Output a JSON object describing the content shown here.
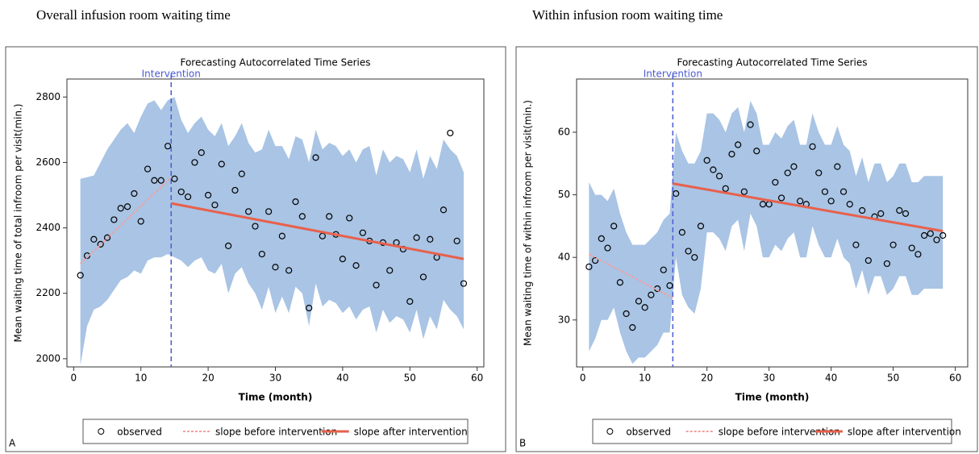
{
  "chart_data": [
    {
      "type": "scatter",
      "panel_title": "Overall infusion room waiting time",
      "title": "Forecasting Autocorrelated Time Series",
      "panel_label": "A",
      "annotation": "Intervention",
      "intervention_x": 14.5,
      "x_label": "Time (month)",
      "y_label": "Mean waiting time of total infroom per visit(min.)",
      "xlim": [
        -1,
        61
      ],
      "xticks": [
        0,
        10,
        20,
        30,
        40,
        50,
        60
      ],
      "ylim": [
        1975,
        2855
      ],
      "yticks": [
        2000,
        2200,
        2400,
        2600,
        2800
      ],
      "x": [
        1,
        2,
        3,
        4,
        5,
        6,
        7,
        8,
        9,
        10,
        11,
        12,
        13,
        14,
        15,
        16,
        17,
        18,
        19,
        20,
        21,
        22,
        23,
        24,
        25,
        26,
        27,
        28,
        29,
        30,
        31,
        32,
        33,
        34,
        35,
        36,
        37,
        38,
        39,
        40,
        41,
        42,
        43,
        44,
        45,
        46,
        47,
        48,
        49,
        50,
        51,
        52,
        53,
        54,
        55,
        56,
        57,
        58
      ],
      "band": {
        "color": "#a9c4e4",
        "upper": [
          2550,
          2555,
          2560,
          2600,
          2640,
          2670,
          2700,
          2720,
          2690,
          2740,
          2780,
          2790,
          2760,
          2790,
          2800,
          2730,
          2690,
          2720,
          2740,
          2700,
          2680,
          2720,
          2650,
          2680,
          2720,
          2660,
          2630,
          2640,
          2700,
          2650,
          2650,
          2610,
          2680,
          2670,
          2600,
          2700,
          2640,
          2660,
          2650,
          2620,
          2640,
          2600,
          2640,
          2650,
          2560,
          2640,
          2600,
          2620,
          2610,
          2570,
          2640,
          2550,
          2620,
          2580,
          2670,
          2640,
          2620,
          2570
        ],
        "lower": [
          1980,
          2100,
          2150,
          2160,
          2180,
          2210,
          2240,
          2250,
          2270,
          2260,
          2300,
          2310,
          2310,
          2320,
          2310,
          2300,
          2280,
          2300,
          2310,
          2270,
          2260,
          2290,
          2200,
          2260,
          2280,
          2230,
          2200,
          2150,
          2220,
          2140,
          2190,
          2140,
          2220,
          2200,
          2100,
          2230,
          2160,
          2180,
          2170,
          2140,
          2160,
          2120,
          2150,
          2160,
          2080,
          2150,
          2110,
          2130,
          2120,
          2080,
          2150,
          2060,
          2130,
          2090,
          2180,
          2150,
          2130,
          2090
        ]
      },
      "series": [
        {
          "name": "observed",
          "color": "#000000",
          "values": [
            2255,
            2315,
            2365,
            2350,
            2370,
            2425,
            2460,
            2465,
            2505,
            2420,
            2580,
            2545,
            2545,
            2650,
            2550,
            2510,
            2495,
            2600,
            2630,
            2500,
            2470,
            2595,
            2345,
            2515,
            2565,
            2450,
            2405,
            2320,
            2450,
            2280,
            2375,
            2270,
            2480,
            2435,
            2155,
            2615,
            2375,
            2435,
            2380,
            2305,
            2430,
            2285,
            2385,
            2360,
            2225,
            2355,
            2270,
            2355,
            2335,
            2175,
            2370,
            2250,
            2365,
            2310,
            2455,
            2690,
            2360,
            2230
          ]
        },
        {
          "name": "slope before intervention",
          "color": "#f2a0a0",
          "x": [
            1,
            14.5
          ],
          "values": [
            2290,
            2555
          ]
        },
        {
          "name": "slope after intervention",
          "color": "#e8604c",
          "x": [
            14.5,
            58
          ],
          "values": [
            2475,
            2305
          ]
        }
      ]
    },
    {
      "type": "scatter",
      "panel_title": "Within infusion room waiting time",
      "title": "Forecasting Autocorrelated Time Series",
      "panel_label": "B",
      "annotation": "Intervention",
      "intervention_x": 14.5,
      "x_label": "Time (month)",
      "y_label": "Mean waiting time of within infroom per visit(min.)",
      "xlim": [
        -1,
        62
      ],
      "xticks": [
        0,
        10,
        20,
        30,
        40,
        50,
        60
      ],
      "ylim": [
        22.5,
        68.5
      ],
      "yticks": [
        30,
        40,
        50,
        60
      ],
      "x": [
        1,
        2,
        3,
        4,
        5,
        6,
        7,
        8,
        9,
        10,
        11,
        12,
        13,
        14,
        15,
        16,
        17,
        18,
        19,
        20,
        21,
        22,
        23,
        24,
        25,
        26,
        27,
        28,
        29,
        30,
        31,
        32,
        33,
        34,
        35,
        36,
        37,
        38,
        39,
        40,
        41,
        42,
        43,
        44,
        45,
        46,
        47,
        48,
        49,
        50,
        51,
        52,
        53,
        54,
        55,
        56,
        57,
        58
      ],
      "band": {
        "color": "#a9c4e4",
        "upper": [
          52,
          50,
          50,
          49,
          51,
          47,
          44,
          42,
          42,
          42,
          43,
          44,
          46,
          47,
          60,
          57,
          55,
          55,
          57,
          63,
          63,
          62,
          60,
          63,
          64,
          60,
          65,
          63,
          58,
          58,
          60,
          59,
          61,
          62,
          58,
          58,
          63,
          60,
          58,
          58,
          61,
          58,
          57,
          53,
          56,
          52,
          55,
          55,
          52,
          53,
          55,
          55,
          52,
          52,
          53,
          53,
          53,
          53
        ],
        "lower": [
          25,
          27,
          30,
          30,
          32,
          28,
          25,
          23,
          24,
          24,
          25,
          26,
          28,
          28,
          40,
          34,
          32,
          31,
          35,
          44,
          44,
          43,
          41,
          45,
          46,
          41,
          47,
          45,
          40,
          40,
          42,
          41,
          43,
          44,
          40,
          40,
          45,
          42,
          40,
          40,
          43,
          40,
          39,
          35,
          38,
          34,
          37,
          37,
          34,
          35,
          37,
          37,
          34,
          34,
          35,
          35,
          35,
          35
        ]
      },
      "series": [
        {
          "name": "observed",
          "color": "#000000",
          "values": [
            38.5,
            39.5,
            43,
            41.5,
            45,
            36,
            31,
            28.8,
            33,
            32,
            34,
            35,
            38,
            35.5,
            50.2,
            44,
            41,
            40,
            45,
            55.5,
            54,
            53,
            51,
            56.5,
            58,
            50.5,
            61.2,
            57,
            48.5,
            48.5,
            52,
            49.5,
            53.5,
            54.5,
            49,
            48.5,
            57.7,
            53.5,
            50.5,
            49,
            54.5,
            50.5,
            48.5,
            42,
            47.5,
            39.5,
            46.5,
            47,
            39,
            42,
            47.5,
            47,
            41.5,
            40.5,
            43.5,
            43.8,
            42.8,
            43.5
          ]
        },
        {
          "name": "slope before intervention",
          "color": "#f2a0a0",
          "x": [
            1,
            14.5
          ],
          "values": [
            40.5,
            33.5
          ]
        },
        {
          "name": "slope after intervention",
          "color": "#e8604c",
          "x": [
            14.5,
            58
          ],
          "values": [
            51.8,
            44.2
          ]
        }
      ]
    }
  ]
}
